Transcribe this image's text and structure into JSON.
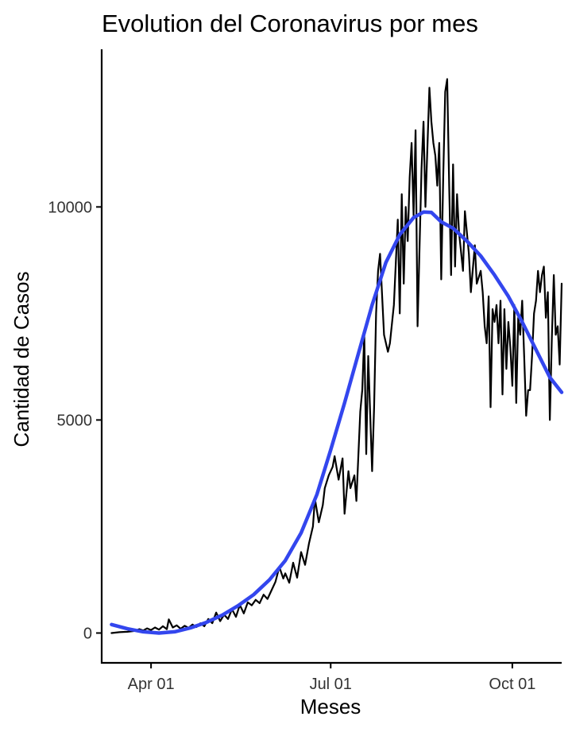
{
  "chart_data": {
    "type": "line",
    "title": "Evolution del Coronavirus por mes",
    "xlabel": "Meses",
    "ylabel": "Cantidad de Casos",
    "x_ticks": [
      {
        "date": "2020-04-01",
        "label": "Apr 01"
      },
      {
        "date": "2020-07-01",
        "label": "Jul 01"
      },
      {
        "date": "2020-10-01",
        "label": "Oct 01"
      }
    ],
    "y_ticks": [
      0,
      5000,
      10000
    ],
    "xlim": [
      "2020-03-07",
      "2020-10-26"
    ],
    "ylim": [
      -700,
      13700
    ],
    "grid": false,
    "colors": {
      "daily": "#000000",
      "smooth": "#3346ee"
    },
    "series": [
      {
        "kind": "daily",
        "points": [
          [
            "2020-03-12",
            0
          ],
          [
            "2020-03-16",
            20
          ],
          [
            "2020-03-20",
            30
          ],
          [
            "2020-03-24",
            50
          ],
          [
            "2020-03-26",
            90
          ],
          [
            "2020-03-28",
            60
          ],
          [
            "2020-03-30",
            110
          ],
          [
            "2020-04-01",
            70
          ],
          [
            "2020-04-03",
            130
          ],
          [
            "2020-04-05",
            80
          ],
          [
            "2020-04-07",
            160
          ],
          [
            "2020-04-09",
            90
          ],
          [
            "2020-04-10",
            320
          ],
          [
            "2020-04-12",
            130
          ],
          [
            "2020-04-14",
            180
          ],
          [
            "2020-04-16",
            100
          ],
          [
            "2020-04-18",
            170
          ],
          [
            "2020-04-20",
            120
          ],
          [
            "2020-04-22",
            200
          ],
          [
            "2020-04-24",
            140
          ],
          [
            "2020-04-26",
            230
          ],
          [
            "2020-04-28",
            160
          ],
          [
            "2020-04-30",
            330
          ],
          [
            "2020-05-02",
            230
          ],
          [
            "2020-05-04",
            480
          ],
          [
            "2020-05-06",
            280
          ],
          [
            "2020-05-08",
            430
          ],
          [
            "2020-05-10",
            330
          ],
          [
            "2020-05-12",
            560
          ],
          [
            "2020-05-14",
            380
          ],
          [
            "2020-05-16",
            660
          ],
          [
            "2020-05-18",
            460
          ],
          [
            "2020-05-20",
            720
          ],
          [
            "2020-05-22",
            650
          ],
          [
            "2020-05-24",
            780
          ],
          [
            "2020-05-26",
            700
          ],
          [
            "2020-05-28",
            900
          ],
          [
            "2020-05-30",
            800
          ],
          [
            "2020-06-01",
            1000
          ],
          [
            "2020-06-03",
            1200
          ],
          [
            "2020-06-05",
            1550
          ],
          [
            "2020-06-07",
            1280
          ],
          [
            "2020-06-08",
            1400
          ],
          [
            "2020-06-10",
            1180
          ],
          [
            "2020-06-12",
            1650
          ],
          [
            "2020-06-14",
            1300
          ],
          [
            "2020-06-16",
            1900
          ],
          [
            "2020-06-18",
            1600
          ],
          [
            "2020-06-20",
            2100
          ],
          [
            "2020-06-22",
            2500
          ],
          [
            "2020-06-23",
            3150
          ],
          [
            "2020-06-25",
            2600
          ],
          [
            "2020-06-27",
            3000
          ],
          [
            "2020-06-28",
            3400
          ],
          [
            "2020-06-30",
            3700
          ],
          [
            "2020-07-02",
            3900
          ],
          [
            "2020-07-03",
            4150
          ],
          [
            "2020-07-05",
            3600
          ],
          [
            "2020-07-07",
            4100
          ],
          [
            "2020-07-08",
            2800
          ],
          [
            "2020-07-10",
            3800
          ],
          [
            "2020-07-11",
            3400
          ],
          [
            "2020-07-13",
            3700
          ],
          [
            "2020-07-14",
            3100
          ],
          [
            "2020-07-16",
            5200
          ],
          [
            "2020-07-17",
            5700
          ],
          [
            "2020-07-18",
            7000
          ],
          [
            "2020-07-19",
            4200
          ],
          [
            "2020-07-20",
            6500
          ],
          [
            "2020-07-22",
            3800
          ],
          [
            "2020-07-23",
            5300
          ],
          [
            "2020-07-24",
            7500
          ],
          [
            "2020-07-25",
            8500
          ],
          [
            "2020-07-26",
            8900
          ],
          [
            "2020-07-28",
            7000
          ],
          [
            "2020-07-30",
            6600
          ],
          [
            "2020-07-31",
            6800
          ],
          [
            "2020-08-02",
            7700
          ],
          [
            "2020-08-04",
            9700
          ],
          [
            "2020-08-05",
            7500
          ],
          [
            "2020-08-06",
            10300
          ],
          [
            "2020-08-07",
            8200
          ],
          [
            "2020-08-08",
            10000
          ],
          [
            "2020-08-09",
            9200
          ],
          [
            "2020-08-10",
            10700
          ],
          [
            "2020-08-11",
            11500
          ],
          [
            "2020-08-12",
            9800
          ],
          [
            "2020-08-13",
            11800
          ],
          [
            "2020-08-14",
            7200
          ],
          [
            "2020-08-16",
            10900
          ],
          [
            "2020-08-17",
            12000
          ],
          [
            "2020-08-18",
            10000
          ],
          [
            "2020-08-20",
            12800
          ],
          [
            "2020-08-21",
            12000
          ],
          [
            "2020-08-22",
            11500
          ],
          [
            "2020-08-23",
            11200
          ],
          [
            "2020-08-24",
            10500
          ],
          [
            "2020-08-25",
            11500
          ],
          [
            "2020-08-26",
            8300
          ],
          [
            "2020-08-27",
            10700
          ],
          [
            "2020-08-28",
            12700
          ],
          [
            "2020-08-29",
            13000
          ],
          [
            "2020-08-30",
            10500
          ],
          [
            "2020-08-31",
            8400
          ],
          [
            "2020-09-01",
            11000
          ],
          [
            "2020-09-02",
            8600
          ],
          [
            "2020-09-03",
            10300
          ],
          [
            "2020-09-04",
            9400
          ],
          [
            "2020-09-06",
            8500
          ],
          [
            "2020-09-07",
            9900
          ],
          [
            "2020-09-09",
            8900
          ],
          [
            "2020-09-10",
            8000
          ],
          [
            "2020-09-12",
            9100
          ],
          [
            "2020-09-13",
            8200
          ],
          [
            "2020-09-15",
            8500
          ],
          [
            "2020-09-16",
            8000
          ],
          [
            "2020-09-17",
            7200
          ],
          [
            "2020-09-18",
            6800
          ],
          [
            "2020-09-19",
            7900
          ],
          [
            "2020-09-20",
            5300
          ],
          [
            "2020-09-21",
            7600
          ],
          [
            "2020-09-22",
            7300
          ],
          [
            "2020-09-23",
            7700
          ],
          [
            "2020-09-24",
            6800
          ],
          [
            "2020-09-25",
            7800
          ],
          [
            "2020-09-26",
            5600
          ],
          [
            "2020-09-27",
            7600
          ],
          [
            "2020-09-28",
            6200
          ],
          [
            "2020-09-29",
            7300
          ],
          [
            "2020-09-30",
            6700
          ],
          [
            "2020-10-01",
            5800
          ],
          [
            "2020-10-02",
            7700
          ],
          [
            "2020-10-03",
            5400
          ],
          [
            "2020-10-04",
            7400
          ],
          [
            "2020-10-05",
            7000
          ],
          [
            "2020-10-06",
            7800
          ],
          [
            "2020-10-07",
            6500
          ],
          [
            "2020-10-08",
            5100
          ],
          [
            "2020-10-09",
            5700
          ],
          [
            "2020-10-10",
            5700
          ],
          [
            "2020-10-11",
            6500
          ],
          [
            "2020-10-12",
            7500
          ],
          [
            "2020-10-13",
            7800
          ],
          [
            "2020-10-14",
            8500
          ],
          [
            "2020-10-15",
            8000
          ],
          [
            "2020-10-16",
            8400
          ],
          [
            "2020-10-17",
            8600
          ],
          [
            "2020-10-18",
            7400
          ],
          [
            "2020-10-19",
            8000
          ],
          [
            "2020-10-20",
            5000
          ],
          [
            "2020-10-21",
            6900
          ],
          [
            "2020-10-22",
            8400
          ],
          [
            "2020-10-23",
            7000
          ],
          [
            "2020-10-24",
            7200
          ],
          [
            "2020-10-25",
            6300
          ],
          [
            "2020-10-26",
            8200
          ]
        ]
      },
      {
        "kind": "smooth",
        "points": [
          [
            "2020-03-12",
            200
          ],
          [
            "2020-03-20",
            100
          ],
          [
            "2020-03-28",
            30
          ],
          [
            "2020-04-05",
            0
          ],
          [
            "2020-04-13",
            30
          ],
          [
            "2020-04-21",
            120
          ],
          [
            "2020-04-29",
            250
          ],
          [
            "2020-05-07",
            420
          ],
          [
            "2020-05-15",
            640
          ],
          [
            "2020-05-23",
            900
          ],
          [
            "2020-05-31",
            1250
          ],
          [
            "2020-06-08",
            1700
          ],
          [
            "2020-06-16",
            2350
          ],
          [
            "2020-06-24",
            3250
          ],
          [
            "2020-07-01",
            4300
          ],
          [
            "2020-07-08",
            5400
          ],
          [
            "2020-07-15",
            6550
          ],
          [
            "2020-07-22",
            7700
          ],
          [
            "2020-07-29",
            8700
          ],
          [
            "2020-08-05",
            9350
          ],
          [
            "2020-08-12",
            9750
          ],
          [
            "2020-08-17",
            9880
          ],
          [
            "2020-08-21",
            9870
          ],
          [
            "2020-08-26",
            9650
          ],
          [
            "2020-09-01",
            9500
          ],
          [
            "2020-09-08",
            9200
          ],
          [
            "2020-09-15",
            8850
          ],
          [
            "2020-09-22",
            8400
          ],
          [
            "2020-09-29",
            7900
          ],
          [
            "2020-10-06",
            7300
          ],
          [
            "2020-10-13",
            6650
          ],
          [
            "2020-10-20",
            6000
          ],
          [
            "2020-10-26",
            5650
          ]
        ]
      }
    ]
  }
}
